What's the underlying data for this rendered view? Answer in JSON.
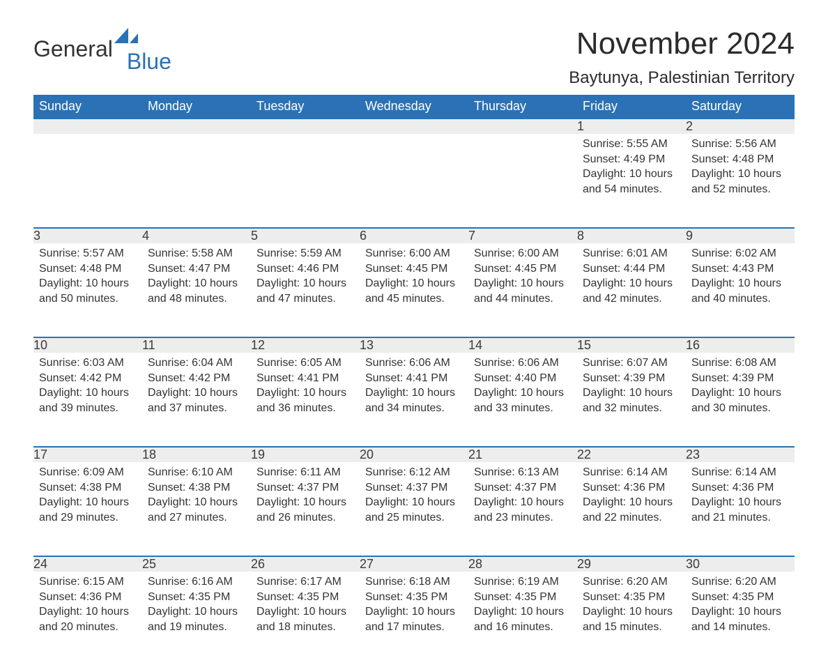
{
  "logo": {
    "text1": "General",
    "text2": "Blue",
    "icon_color": "#2a72b5"
  },
  "title": "November 2024",
  "location": "Baytunya, Palestinian Territory",
  "colors": {
    "header_bg": "#2a72b5",
    "header_fg": "#ffffff",
    "daynum_bg": "#ededed",
    "row_border": "#2a72b5",
    "text": "#333333",
    "background": "#ffffff"
  },
  "typography": {
    "title_fontsize": 44,
    "location_fontsize": 24,
    "header_fontsize": 18,
    "daynum_fontsize": 18,
    "content_fontsize": 16
  },
  "weekdays": [
    "Sunday",
    "Monday",
    "Tuesday",
    "Wednesday",
    "Thursday",
    "Friday",
    "Saturday"
  ],
  "weeks": [
    [
      null,
      null,
      null,
      null,
      null,
      {
        "n": "1",
        "sunrise": "Sunrise: 5:55 AM",
        "sunset": "Sunset: 4:49 PM",
        "daylight": "Daylight: 10 hours and 54 minutes."
      },
      {
        "n": "2",
        "sunrise": "Sunrise: 5:56 AM",
        "sunset": "Sunset: 4:48 PM",
        "daylight": "Daylight: 10 hours and 52 minutes."
      }
    ],
    [
      {
        "n": "3",
        "sunrise": "Sunrise: 5:57 AM",
        "sunset": "Sunset: 4:48 PM",
        "daylight": "Daylight: 10 hours and 50 minutes."
      },
      {
        "n": "4",
        "sunrise": "Sunrise: 5:58 AM",
        "sunset": "Sunset: 4:47 PM",
        "daylight": "Daylight: 10 hours and 48 minutes."
      },
      {
        "n": "5",
        "sunrise": "Sunrise: 5:59 AM",
        "sunset": "Sunset: 4:46 PM",
        "daylight": "Daylight: 10 hours and 47 minutes."
      },
      {
        "n": "6",
        "sunrise": "Sunrise: 6:00 AM",
        "sunset": "Sunset: 4:45 PM",
        "daylight": "Daylight: 10 hours and 45 minutes."
      },
      {
        "n": "7",
        "sunrise": "Sunrise: 6:00 AM",
        "sunset": "Sunset: 4:45 PM",
        "daylight": "Daylight: 10 hours and 44 minutes."
      },
      {
        "n": "8",
        "sunrise": "Sunrise: 6:01 AM",
        "sunset": "Sunset: 4:44 PM",
        "daylight": "Daylight: 10 hours and 42 minutes."
      },
      {
        "n": "9",
        "sunrise": "Sunrise: 6:02 AM",
        "sunset": "Sunset: 4:43 PM",
        "daylight": "Daylight: 10 hours and 40 minutes."
      }
    ],
    [
      {
        "n": "10",
        "sunrise": "Sunrise: 6:03 AM",
        "sunset": "Sunset: 4:42 PM",
        "daylight": "Daylight: 10 hours and 39 minutes."
      },
      {
        "n": "11",
        "sunrise": "Sunrise: 6:04 AM",
        "sunset": "Sunset: 4:42 PM",
        "daylight": "Daylight: 10 hours and 37 minutes."
      },
      {
        "n": "12",
        "sunrise": "Sunrise: 6:05 AM",
        "sunset": "Sunset: 4:41 PM",
        "daylight": "Daylight: 10 hours and 36 minutes."
      },
      {
        "n": "13",
        "sunrise": "Sunrise: 6:06 AM",
        "sunset": "Sunset: 4:41 PM",
        "daylight": "Daylight: 10 hours and 34 minutes."
      },
      {
        "n": "14",
        "sunrise": "Sunrise: 6:06 AM",
        "sunset": "Sunset: 4:40 PM",
        "daylight": "Daylight: 10 hours and 33 minutes."
      },
      {
        "n": "15",
        "sunrise": "Sunrise: 6:07 AM",
        "sunset": "Sunset: 4:39 PM",
        "daylight": "Daylight: 10 hours and 32 minutes."
      },
      {
        "n": "16",
        "sunrise": "Sunrise: 6:08 AM",
        "sunset": "Sunset: 4:39 PM",
        "daylight": "Daylight: 10 hours and 30 minutes."
      }
    ],
    [
      {
        "n": "17",
        "sunrise": "Sunrise: 6:09 AM",
        "sunset": "Sunset: 4:38 PM",
        "daylight": "Daylight: 10 hours and 29 minutes."
      },
      {
        "n": "18",
        "sunrise": "Sunrise: 6:10 AM",
        "sunset": "Sunset: 4:38 PM",
        "daylight": "Daylight: 10 hours and 27 minutes."
      },
      {
        "n": "19",
        "sunrise": "Sunrise: 6:11 AM",
        "sunset": "Sunset: 4:37 PM",
        "daylight": "Daylight: 10 hours and 26 minutes."
      },
      {
        "n": "20",
        "sunrise": "Sunrise: 6:12 AM",
        "sunset": "Sunset: 4:37 PM",
        "daylight": "Daylight: 10 hours and 25 minutes."
      },
      {
        "n": "21",
        "sunrise": "Sunrise: 6:13 AM",
        "sunset": "Sunset: 4:37 PM",
        "daylight": "Daylight: 10 hours and 23 minutes."
      },
      {
        "n": "22",
        "sunrise": "Sunrise: 6:14 AM",
        "sunset": "Sunset: 4:36 PM",
        "daylight": "Daylight: 10 hours and 22 minutes."
      },
      {
        "n": "23",
        "sunrise": "Sunrise: 6:14 AM",
        "sunset": "Sunset: 4:36 PM",
        "daylight": "Daylight: 10 hours and 21 minutes."
      }
    ],
    [
      {
        "n": "24",
        "sunrise": "Sunrise: 6:15 AM",
        "sunset": "Sunset: 4:36 PM",
        "daylight": "Daylight: 10 hours and 20 minutes."
      },
      {
        "n": "25",
        "sunrise": "Sunrise: 6:16 AM",
        "sunset": "Sunset: 4:35 PM",
        "daylight": "Daylight: 10 hours and 19 minutes."
      },
      {
        "n": "26",
        "sunrise": "Sunrise: 6:17 AM",
        "sunset": "Sunset: 4:35 PM",
        "daylight": "Daylight: 10 hours and 18 minutes."
      },
      {
        "n": "27",
        "sunrise": "Sunrise: 6:18 AM",
        "sunset": "Sunset: 4:35 PM",
        "daylight": "Daylight: 10 hours and 17 minutes."
      },
      {
        "n": "28",
        "sunrise": "Sunrise: 6:19 AM",
        "sunset": "Sunset: 4:35 PM",
        "daylight": "Daylight: 10 hours and 16 minutes."
      },
      {
        "n": "29",
        "sunrise": "Sunrise: 6:20 AM",
        "sunset": "Sunset: 4:35 PM",
        "daylight": "Daylight: 10 hours and 15 minutes."
      },
      {
        "n": "30",
        "sunrise": "Sunrise: 6:20 AM",
        "sunset": "Sunset: 4:35 PM",
        "daylight": "Daylight: 10 hours and 14 minutes."
      }
    ]
  ]
}
